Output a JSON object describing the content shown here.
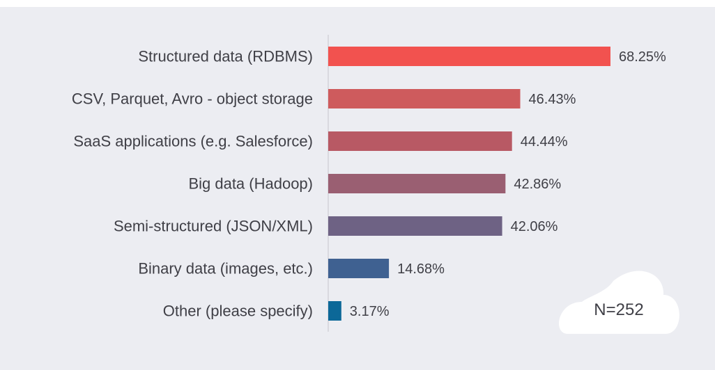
{
  "chart_data": {
    "type": "bar",
    "orientation": "horizontal",
    "categories": [
      "Structured data (RDBMS)",
      "CSV, Parquet, Avro - object storage",
      "SaaS applications (e.g. Salesforce)",
      "Big data (Hadoop)",
      "Semi-structured (JSON/XML)",
      "Binary data (images, etc.)",
      "Other (please specify)"
    ],
    "values": [
      68.25,
      46.43,
      44.44,
      42.86,
      42.06,
      14.68,
      3.17
    ],
    "value_labels": [
      "68.25%",
      "46.43%",
      "44.44%",
      "42.86%",
      "42.06%",
      "14.68%",
      "3.17%"
    ],
    "bar_colors": [
      "#f2524f",
      "#ce5b5d",
      "#b85964",
      "#9a5f72",
      "#6e6284",
      "#3f6191",
      "#0c6898"
    ],
    "xlim": [
      0,
      100
    ],
    "grid": false,
    "legend": "none",
    "annotation": "N=252"
  }
}
